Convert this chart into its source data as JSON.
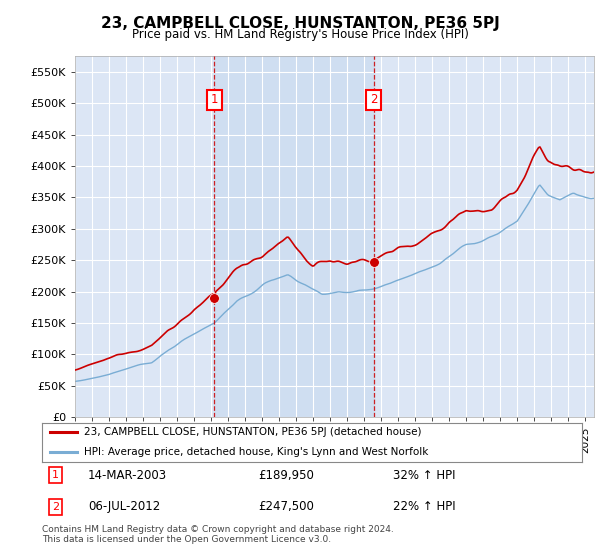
{
  "title": "23, CAMPBELL CLOSE, HUNSTANTON, PE36 5PJ",
  "subtitle": "Price paid vs. HM Land Registry's House Price Index (HPI)",
  "bg_color": "#dce6f5",
  "plot_bg_color": "#dce6f5",
  "shade_color": "#d0e0f0",
  "red_line_color": "#cc0000",
  "blue_line_color": "#7aadd4",
  "marker1_date": "14-MAR-2003",
  "marker1_price": 189950,
  "marker1_hpi": "32% ↑ HPI",
  "marker2_date": "06-JUL-2012",
  "marker2_price": 247500,
  "marker2_hpi": "22% ↑ HPI",
  "legend_line1": "23, CAMPBELL CLOSE, HUNSTANTON, PE36 5PJ (detached house)",
  "legend_line2": "HPI: Average price, detached house, King's Lynn and West Norfolk",
  "footer": "Contains HM Land Registry data © Crown copyright and database right 2024.\nThis data is licensed under the Open Government Licence v3.0.",
  "ylim": [
    0,
    575000
  ],
  "yticks": [
    0,
    50000,
    100000,
    150000,
    200000,
    250000,
    300000,
    350000,
    400000,
    450000,
    500000,
    550000
  ]
}
